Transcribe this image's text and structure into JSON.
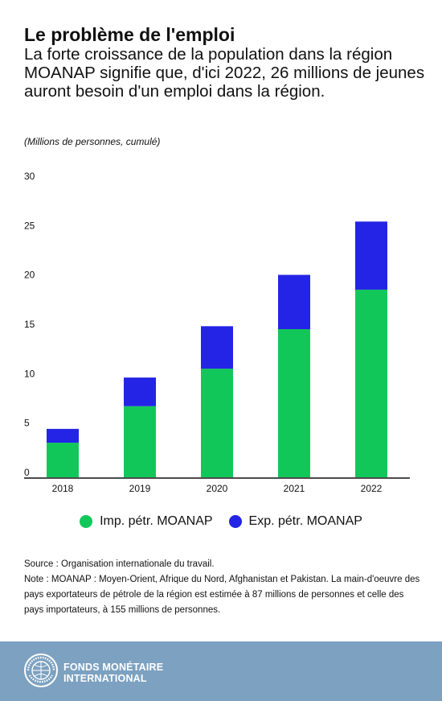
{
  "header": {
    "title": "Le problème de l'emploi",
    "subtitle": "La forte croissance de la population dans la région MOANAP signifie que, d'ici 2022, 26 millions de jeunes auront besoin d'un emploi dans la région.",
    "unit_note": "(Millions de personnes, cumulé)"
  },
  "chart_data": {
    "type": "bar",
    "stacked": true,
    "categories": [
      "2018",
      "2019",
      "2020",
      "2021",
      "2022"
    ],
    "series": [
      {
        "name": "Imp. pétr. MOANAP",
        "color": "#12c75a",
        "values": [
          3.5,
          7.2,
          11.0,
          15.0,
          19.0
        ]
      },
      {
        "name": "Exp. pétr. MOANAP",
        "color": "#2424e6",
        "values": [
          1.4,
          2.9,
          4.3,
          5.5,
          6.9
        ]
      }
    ],
    "ylim": [
      0,
      30
    ],
    "yticks": [
      0,
      5,
      10,
      15,
      20,
      25,
      30
    ],
    "grid": false,
    "legend": "bottom"
  },
  "notes": {
    "source": "Source : Organisation internationale du travail.",
    "note": "Note : MOANAP : Moyen-Orient, Afrique du Nord, Afghanistan et Pakistan. La main-d'oeuvre des pays exportateurs de pétrole de la région est estimée à 87 millions de personnes et celle des pays importateurs, à 155 millions de personnes."
  },
  "footer": {
    "org_line1": "FONDS MONÉTAIRE",
    "org_line2": "INTERNATIONAL",
    "seal_text": "FUND MONETARY INTERNATIONAL",
    "background": "#7ca1c1"
  }
}
